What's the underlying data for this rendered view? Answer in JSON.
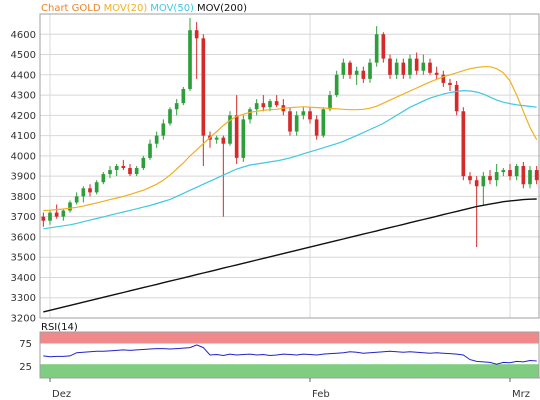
{
  "colors": {
    "background": "#ffffff",
    "grid": "#d8d8d8",
    "frame": "#a0a0a0",
    "up_candle": "#2e9e3a",
    "down_candle": "#d42a2a",
    "mov20": "#f0b020",
    "mov50": "#40c8e0",
    "mov200": "#111111",
    "rsi_line": "#2222cc",
    "rsi_overbought_band": "#f08a8a",
    "rsi_oversold_band": "#80cc80"
  },
  "chart_data": [
    {
      "type": "candlestick",
      "title_parts": [
        "Chart GOLD",
        "MOV(20)",
        "MOV(50)",
        "MOV(200)"
      ],
      "legend_placement": "top-left",
      "grid": true,
      "ylim": [
        3200,
        4700
      ],
      "y_ticks": [
        3200,
        3300,
        3400,
        3500,
        3600,
        3700,
        3800,
        3900,
        4000,
        4100,
        4200,
        4300,
        4400,
        4500,
        4600
      ],
      "x_tick_labels": [
        {
          "label": "Dez",
          "index": 1
        },
        {
          "label": "Feb",
          "index": 40
        },
        {
          "label": "Mrz",
          "index": 70
        }
      ],
      "series": [
        {
          "name": "MOV(20)",
          "values": [
            3730,
            3732,
            3735,
            3738,
            3742,
            3746,
            3752,
            3760,
            3768,
            3776,
            3784,
            3792,
            3800,
            3810,
            3820,
            3830,
            3845,
            3860,
            3880,
            3905,
            3935,
            3965,
            4000,
            4030,
            4060,
            4090,
            4120,
            4150,
            4175,
            4195,
            4205,
            4215,
            4220,
            4225,
            4228,
            4230,
            4235,
            4238,
            4240,
            4242,
            4240,
            4238,
            4236,
            4234,
            4232,
            4230,
            4228,
            4228,
            4230,
            4235,
            4245,
            4260,
            4275,
            4290,
            4305,
            4320,
            4335,
            4350,
            4365,
            4378,
            4390,
            4400,
            4410,
            4420,
            4430,
            4436,
            4440,
            4440,
            4430,
            4410,
            4370,
            4300,
            4220,
            4140,
            4080
          ]
        },
        {
          "name": "MOV(50)",
          "values": [
            3640,
            3645,
            3650,
            3655,
            3660,
            3667,
            3675,
            3683,
            3691,
            3699,
            3707,
            3715,
            3723,
            3731,
            3739,
            3747,
            3755,
            3765,
            3775,
            3785,
            3800,
            3815,
            3830,
            3845,
            3860,
            3875,
            3890,
            3905,
            3920,
            3935,
            3945,
            3955,
            3960,
            3965,
            3970,
            3975,
            3982,
            3990,
            4000,
            4010,
            4020,
            4030,
            4040,
            4050,
            4060,
            4072,
            4086,
            4100,
            4115,
            4130,
            4145,
            4160,
            4180,
            4200,
            4220,
            4240,
            4255,
            4270,
            4285,
            4295,
            4305,
            4312,
            4318,
            4322,
            4320,
            4315,
            4305,
            4290,
            4275,
            4265,
            4258,
            4252,
            4248,
            4244,
            4240
          ]
        },
        {
          "name": "MOV(200)",
          "values": [
            3230,
            3238,
            3246,
            3254,
            3262,
            3270,
            3278,
            3286,
            3294,
            3302,
            3310,
            3318,
            3326,
            3334,
            3342,
            3350,
            3358,
            3366,
            3374,
            3382,
            3390,
            3398,
            3406,
            3414,
            3422,
            3430,
            3438,
            3446,
            3454,
            3462,
            3470,
            3478,
            3486,
            3494,
            3502,
            3510,
            3518,
            3526,
            3534,
            3542,
            3550,
            3558,
            3566,
            3574,
            3582,
            3590,
            3598,
            3606,
            3614,
            3622,
            3630,
            3638,
            3646,
            3654,
            3662,
            3670,
            3678,
            3686,
            3694,
            3702,
            3710,
            3718,
            3726,
            3734,
            3742,
            3750,
            3756,
            3762,
            3768,
            3774,
            3778,
            3781,
            3784,
            3786,
            3787
          ]
        }
      ],
      "candles": [
        {
          "o": 3700,
          "h": 3720,
          "l": 3650,
          "c": 3680
        },
        {
          "o": 3680,
          "h": 3730,
          "l": 3660,
          "c": 3720
        },
        {
          "o": 3720,
          "h": 3760,
          "l": 3690,
          "c": 3700
        },
        {
          "o": 3700,
          "h": 3740,
          "l": 3680,
          "c": 3730
        },
        {
          "o": 3730,
          "h": 3780,
          "l": 3720,
          "c": 3770
        },
        {
          "o": 3770,
          "h": 3820,
          "l": 3760,
          "c": 3800
        },
        {
          "o": 3800,
          "h": 3850,
          "l": 3770,
          "c": 3840
        },
        {
          "o": 3840,
          "h": 3860,
          "l": 3800,
          "c": 3820
        },
        {
          "o": 3820,
          "h": 3880,
          "l": 3810,
          "c": 3870
        },
        {
          "o": 3870,
          "h": 3920,
          "l": 3860,
          "c": 3910
        },
        {
          "o": 3910,
          "h": 3950,
          "l": 3890,
          "c": 3930
        },
        {
          "o": 3930,
          "h": 3960,
          "l": 3900,
          "c": 3950
        },
        {
          "o": 3950,
          "h": 3980,
          "l": 3930,
          "c": 3940
        },
        {
          "o": 3940,
          "h": 3960,
          "l": 3900,
          "c": 3910
        },
        {
          "o": 3910,
          "h": 3950,
          "l": 3900,
          "c": 3940
        },
        {
          "o": 3940,
          "h": 4000,
          "l": 3930,
          "c": 3990
        },
        {
          "o": 3990,
          "h": 4080,
          "l": 3980,
          "c": 4060
        },
        {
          "o": 4060,
          "h": 4120,
          "l": 4040,
          "c": 4100
        },
        {
          "o": 4100,
          "h": 4180,
          "l": 4080,
          "c": 4160
        },
        {
          "o": 4160,
          "h": 4240,
          "l": 4150,
          "c": 4230
        },
        {
          "o": 4230,
          "h": 4280,
          "l": 4200,
          "c": 4260
        },
        {
          "o": 4260,
          "h": 4340,
          "l": 4250,
          "c": 4330
        },
        {
          "o": 4330,
          "h": 4680,
          "l": 4320,
          "c": 4620
        },
        {
          "o": 4620,
          "h": 4660,
          "l": 4380,
          "c": 4580
        },
        {
          "o": 4580,
          "h": 4600,
          "l": 3950,
          "c": 4100
        },
        {
          "o": 4100,
          "h": 4120,
          "l": 4040,
          "c": 4080
        },
        {
          "o": 4080,
          "h": 4100,
          "l": 4060,
          "c": 4090
        },
        {
          "o": 4090,
          "h": 4100,
          "l": 3700,
          "c": 4060
        },
        {
          "o": 4060,
          "h": 4220,
          "l": 4050,
          "c": 4200
        },
        {
          "o": 4200,
          "h": 4300,
          "l": 3960,
          "c": 3990
        },
        {
          "o": 3990,
          "h": 4200,
          "l": 3970,
          "c": 4180
        },
        {
          "o": 4180,
          "h": 4240,
          "l": 4160,
          "c": 4230
        },
        {
          "o": 4230,
          "h": 4280,
          "l": 4200,
          "c": 4260
        },
        {
          "o": 4260,
          "h": 4300,
          "l": 4220,
          "c": 4240
        },
        {
          "o": 4240,
          "h": 4280,
          "l": 4220,
          "c": 4270
        },
        {
          "o": 4270,
          "h": 4300,
          "l": 4240,
          "c": 4250
        },
        {
          "o": 4250,
          "h": 4280,
          "l": 4200,
          "c": 4220
        },
        {
          "o": 4220,
          "h": 4240,
          "l": 4100,
          "c": 4120
        },
        {
          "o": 4120,
          "h": 4220,
          "l": 4100,
          "c": 4200
        },
        {
          "o": 4200,
          "h": 4240,
          "l": 4180,
          "c": 4220
        },
        {
          "o": 4220,
          "h": 4240,
          "l": 4160,
          "c": 4180
        },
        {
          "o": 4180,
          "h": 4200,
          "l": 4080,
          "c": 4100
        },
        {
          "o": 4100,
          "h": 4240,
          "l": 4090,
          "c": 4230
        },
        {
          "o": 4230,
          "h": 4320,
          "l": 4220,
          "c": 4300
        },
        {
          "o": 4300,
          "h": 4420,
          "l": 4290,
          "c": 4400
        },
        {
          "o": 4400,
          "h": 4480,
          "l": 4380,
          "c": 4460
        },
        {
          "o": 4460,
          "h": 4470,
          "l": 4380,
          "c": 4400
        },
        {
          "o": 4400,
          "h": 4440,
          "l": 4350,
          "c": 4420
        },
        {
          "o": 4420,
          "h": 4440,
          "l": 4360,
          "c": 4380
        },
        {
          "o": 4380,
          "h": 4480,
          "l": 4360,
          "c": 4460
        },
        {
          "o": 4460,
          "h": 4640,
          "l": 4440,
          "c": 4600
        },
        {
          "o": 4600,
          "h": 4610,
          "l": 4460,
          "c": 4480
        },
        {
          "o": 4480,
          "h": 4500,
          "l": 4380,
          "c": 4400
        },
        {
          "o": 4400,
          "h": 4480,
          "l": 4380,
          "c": 4460
        },
        {
          "o": 4460,
          "h": 4480,
          "l": 4380,
          "c": 4400
        },
        {
          "o": 4400,
          "h": 4500,
          "l": 4380,
          "c": 4480
        },
        {
          "o": 4480,
          "h": 4510,
          "l": 4400,
          "c": 4420
        },
        {
          "o": 4420,
          "h": 4500,
          "l": 4400,
          "c": 4460
        },
        {
          "o": 4460,
          "h": 4480,
          "l": 4400,
          "c": 4410
        },
        {
          "o": 4410,
          "h": 4440,
          "l": 4380,
          "c": 4400
        },
        {
          "o": 4400,
          "h": 4420,
          "l": 4340,
          "c": 4360
        },
        {
          "o": 4360,
          "h": 4380,
          "l": 4320,
          "c": 4350
        },
        {
          "o": 4350,
          "h": 4370,
          "l": 4200,
          "c": 4220
        },
        {
          "o": 4220,
          "h": 4240,
          "l": 3880,
          "c": 3900
        },
        {
          "o": 3900,
          "h": 3920,
          "l": 3860,
          "c": 3880
        },
        {
          "o": 3880,
          "h": 3900,
          "l": 3550,
          "c": 3850
        },
        {
          "o": 3850,
          "h": 3920,
          "l": 3760,
          "c": 3900
        },
        {
          "o": 3900,
          "h": 3930,
          "l": 3860,
          "c": 3880
        },
        {
          "o": 3880,
          "h": 3960,
          "l": 3850,
          "c": 3920
        },
        {
          "o": 3920,
          "h": 3940,
          "l": 3900,
          "c": 3930
        },
        {
          "o": 3930,
          "h": 3960,
          "l": 3880,
          "c": 3900
        },
        {
          "o": 3900,
          "h": 3960,
          "l": 3880,
          "c": 3950
        },
        {
          "o": 3950,
          "h": 3970,
          "l": 3840,
          "c": 3860
        },
        {
          "o": 3860,
          "h": 3950,
          "l": 3840,
          "c": 3930
        },
        {
          "o": 3930,
          "h": 3950,
          "l": 3860,
          "c": 3880
        }
      ]
    },
    {
      "type": "line",
      "title": "RSI(14)",
      "ylim": [
        0,
        100
      ],
      "y_ticks": [
        25,
        75
      ],
      "bands": {
        "overbought": [
          75,
          100
        ],
        "oversold": [
          0,
          30
        ]
      },
      "series": [
        {
          "name": "RSI(14)",
          "values": [
            48,
            46,
            47,
            47,
            48,
            55,
            56,
            57,
            58,
            58,
            59,
            60,
            61,
            60,
            61,
            62,
            63,
            64,
            64,
            63,
            64,
            65,
            66,
            72,
            66,
            50,
            51,
            49,
            52,
            50,
            51,
            52,
            50,
            51,
            49,
            50,
            52,
            51,
            50,
            52,
            51,
            50,
            52,
            53,
            54,
            55,
            57,
            56,
            54,
            55,
            56,
            57,
            58,
            57,
            56,
            57,
            56,
            55,
            54,
            55,
            54,
            53,
            52,
            50,
            40,
            36,
            35,
            34,
            30,
            34,
            33,
            36,
            35,
            38,
            37
          ]
        }
      ]
    }
  ]
}
